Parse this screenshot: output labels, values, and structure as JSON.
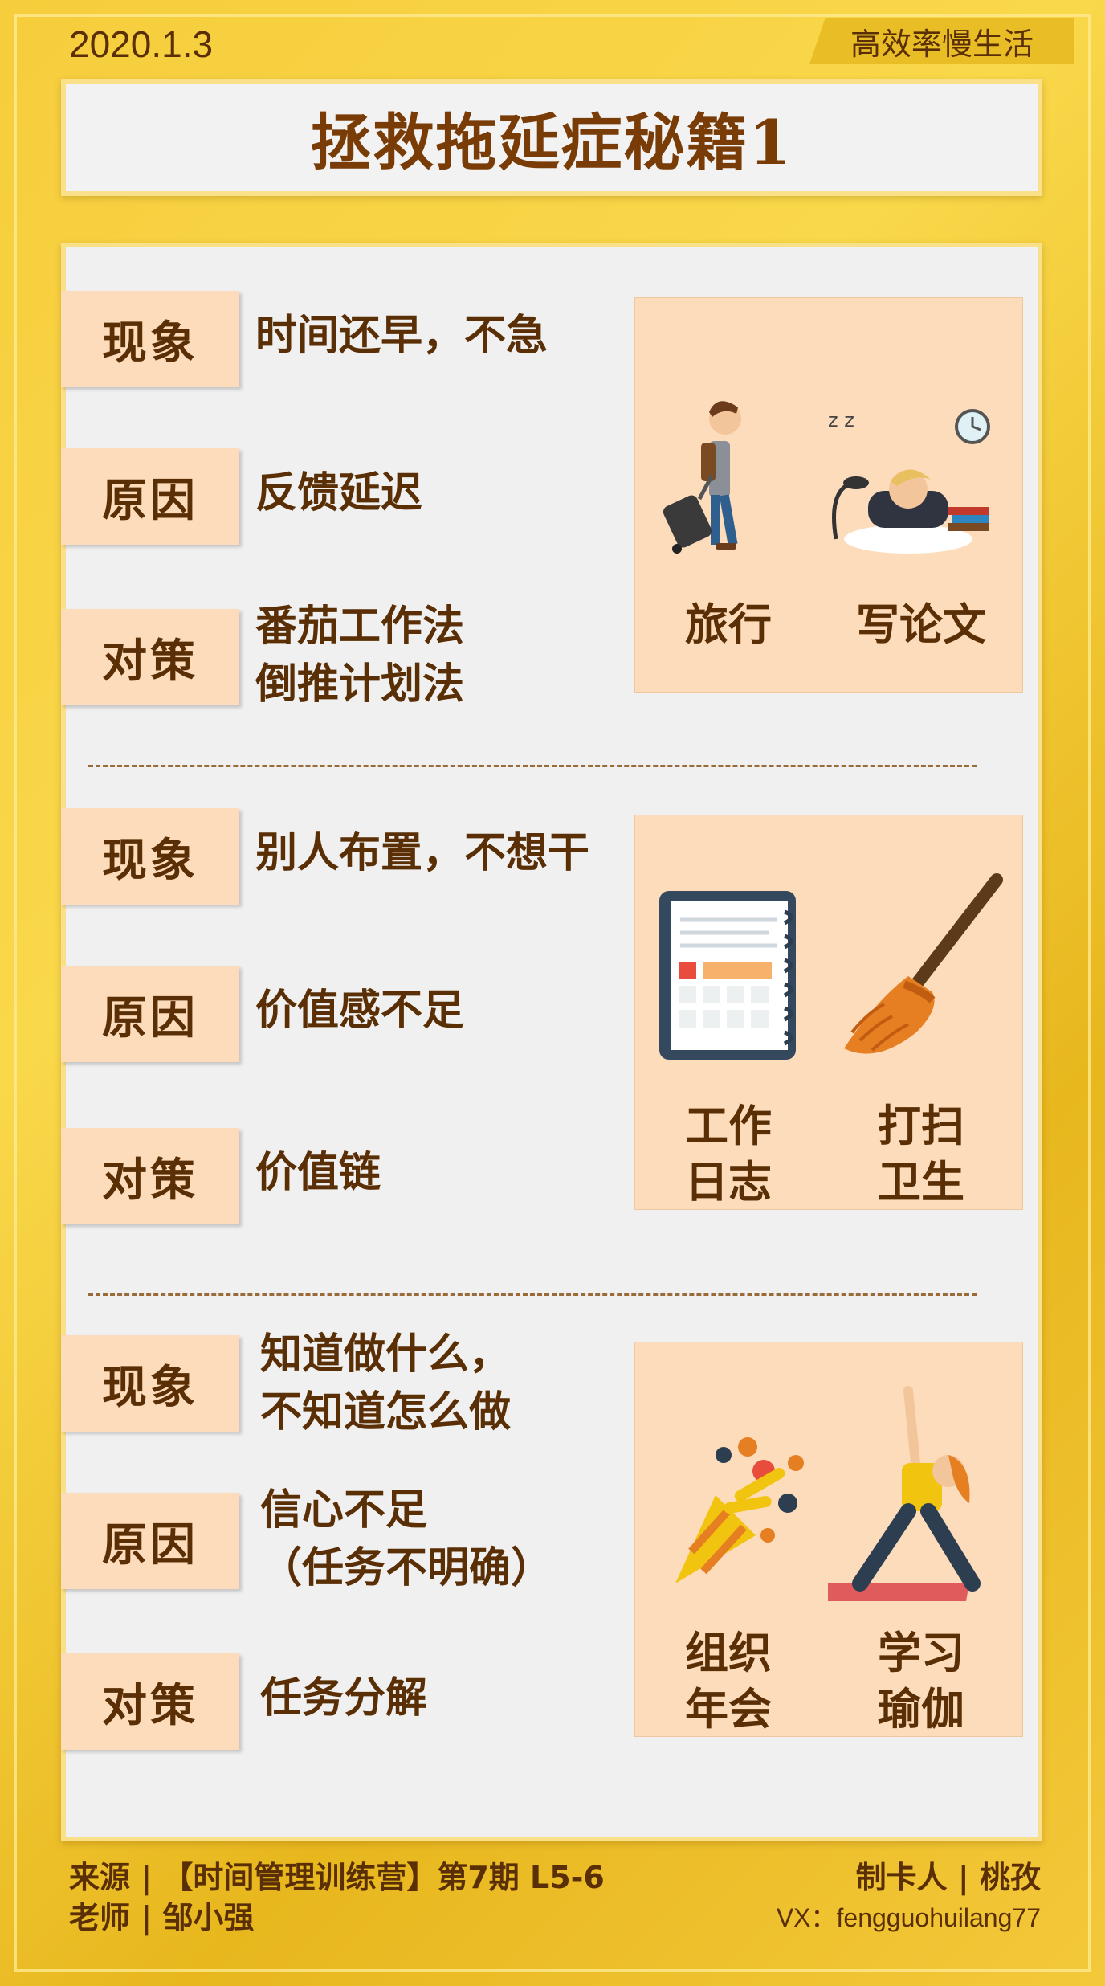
{
  "date": "2020.1.3",
  "brand": "高效率慢生活",
  "title": "拯救拖延症秘籍1",
  "sections": [
    {
      "phenomenon_label": "现象",
      "phenomenon": [
        "时间还早，不急"
      ],
      "cause_label": "原因",
      "cause": [
        "反馈延迟"
      ],
      "solution_label": "对策",
      "solution": [
        "番茄工作法",
        "倒推计划法"
      ],
      "captions": [
        [
          "旅行"
        ],
        [
          "写论文"
        ]
      ],
      "icons": [
        "traveler-with-suitcase",
        "student-sleeping-on-desk"
      ]
    },
    {
      "phenomenon_label": "现象",
      "phenomenon": [
        "别人布置，不想干"
      ],
      "cause_label": "原因",
      "cause": [
        "价值感不足"
      ],
      "solution_label": "对策",
      "solution": [
        "价值链"
      ],
      "captions": [
        [
          "工作",
          "日志"
        ],
        [
          "打扫",
          "卫生"
        ]
      ],
      "icons": [
        "notebook",
        "broom"
      ]
    },
    {
      "phenomenon_label": "现象",
      "phenomenon": [
        "知道做什么，",
        "不知道怎么做"
      ],
      "cause_label": "原因",
      "cause": [
        "信心不足",
        "（任务不明确）"
      ],
      "solution_label": "对策",
      "solution": [
        "任务分解"
      ],
      "captions": [
        [
          "组织",
          "年会"
        ],
        [
          "学习",
          "瑜伽"
        ]
      ],
      "icons": [
        "party-popper",
        "yoga-woman"
      ]
    }
  ],
  "footer": {
    "source_line": "来源 | 【时间管理训练营】第7期  L5-6",
    "teacher_line": "老师 | 邹小强",
    "maker_line": "制卡人 | 桃孜",
    "vx_line": "VX：fengguohuilang77"
  },
  "colors": {
    "background": "#f6cd3c",
    "text": "#5a2f06",
    "label_bg": "#fcdcbb",
    "panel": "#f0f0f0"
  }
}
